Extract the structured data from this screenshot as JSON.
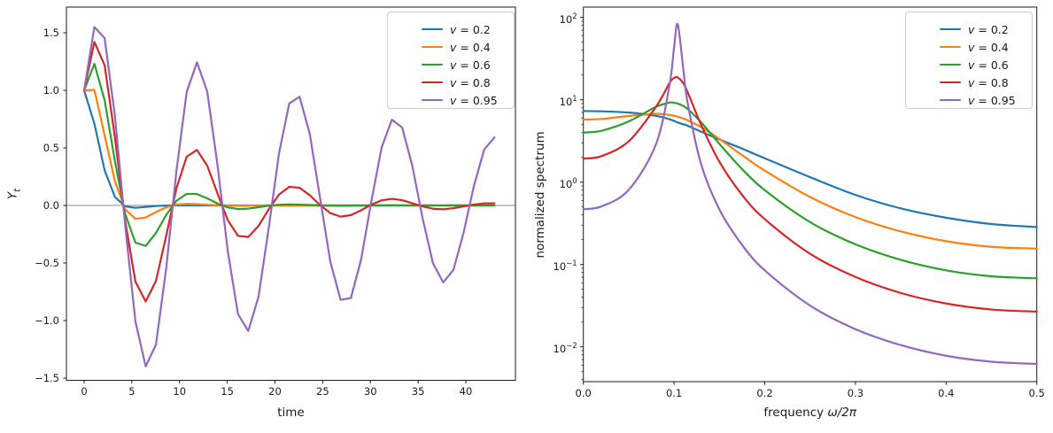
{
  "page": {
    "background": "#ffffff"
  },
  "palette": {
    "blue": "#1f77b4",
    "orange": "#ff7f0e",
    "green": "#2ca02c",
    "red": "#d62728",
    "purple": "#9467bd",
    "zero_line": "#8a8a8a",
    "spine": "#1a1a1a",
    "legend_edge": "#cccccc"
  },
  "chart_data": [
    {
      "type": "line",
      "title": "",
      "xlabel": "time",
      "ylabel_base": "Y",
      "ylabel_sub": "t",
      "xlim": [
        -1.856,
        45.197
      ],
      "ylim": [
        -1.519,
        1.723
      ],
      "yscale": "linear",
      "grid": false,
      "zero_line": true,
      "legend_position": "upper right",
      "xticks": [
        0,
        5,
        10,
        15,
        20,
        25,
        30,
        35,
        40
      ],
      "xtick_labels": [
        "0",
        "5",
        "10",
        "15",
        "20",
        "25",
        "30",
        "35",
        "40"
      ],
      "yticks": [
        1.5,
        1.0,
        0.5,
        0.0,
        -0.5,
        -1.0,
        -1.5
      ],
      "ytick_labels": [
        "1.5",
        "1.0",
        "0.5",
        "0.0",
        "−0.5",
        "−1.0",
        "−1.5"
      ],
      "x": {
        "start": 0,
        "stop": 43,
        "num": 41
      },
      "series": [
        {
          "label_var": "v",
          "label_rest": " = 0.2",
          "color_key": "blue",
          "values": [
            1.0,
            0.7101,
            0.3043,
            0.0741,
            -0.0083,
            -0.0207,
            -0.013,
            -0.0051,
            -0.001,
            0.0003,
            0.0004,
            0.0002,
            0.0001,
            0,
            0,
            0,
            0,
            0,
            0,
            0,
            0,
            0,
            0,
            0,
            0,
            0,
            0,
            0,
            0,
            0,
            0,
            0,
            0,
            0,
            0,
            0,
            0,
            0,
            0,
            0,
            0
          ]
        },
        {
          "label_var": "v",
          "label_rest": " = 0.4",
          "color_key": "orange",
          "values": [
            1.0,
            1.0043,
            0.6085,
            0.2094,
            -0.0331,
            -0.117,
            -0.1043,
            -0.0579,
            -0.0165,
            0.0066,
            0.0133,
            0.0107,
            0.0054,
            0.0012,
            -0.001,
            -0.0015,
            -0.0011,
            -0.0005,
            -0.0001,
            0.0001,
            0.0002,
            0.0002,
            0.0001,
            0,
            0,
            0,
            0,
            0,
            0,
            0,
            0,
            0,
            0,
            0,
            0,
            0,
            0,
            0,
            0,
            0,
            0
          ]
        },
        {
          "label_var": "v",
          "label_rest": " = 0.6",
          "color_key": "green",
          "values": [
            1.0,
            1.23,
            0.9128,
            0.3848,
            -0.0744,
            -0.3224,
            -0.3519,
            -0.2394,
            -0.0833,
            0.0412,
            0.1006,
            0.0991,
            0.0615,
            0.0162,
            -0.017,
            -0.0306,
            -0.0275,
            -0.0154,
            -0.0025,
            0.0062,
            0.0091,
            0.0075,
            0.0037,
            0.0001,
            -0.0021,
            -0.0027,
            -0.002,
            -0.0009,
            0.0001,
            0.0007,
            0.0008,
            0.0005,
            0.0002,
            -0.0001,
            -0.0002,
            -0.0002,
            -0.0001,
            0,
            0.0001,
            0.0001,
            0
          ]
        },
        {
          "label_var": "v",
          "label_rest": " = 0.8",
          "color_key": "red",
          "values": [
            1.0,
            1.4202,
            1.2171,
            0.5924,
            -0.1324,
            -0.6619,
            -0.8341,
            -0.6552,
            -0.2632,
            0.1503,
            0.4241,
            0.482,
            0.3453,
            0.1048,
            -0.1274,
            -0.2648,
            -0.2741,
            -0.1775,
            -0.0328,
            0.0954,
            0.1617,
            0.1534,
            0.0885,
            0.0029,
            -0.0666,
            -0.0969,
            -0.0844,
            -0.0423,
            0.0074,
            0.0444,
            0.0571,
            0.0456,
            0.0191,
            -0.0094,
            -0.0286,
            -0.0331,
            -0.0241,
            -0.0078,
            0.0082,
            0.0179,
            0.0189
          ]
        },
        {
          "label_var": "v",
          "label_rest": " = 0.95",
          "color_key": "purple",
          "values": [
            1.0,
            1.55,
            1.4525,
            0.7789,
            -0.1726,
            -1.0075,
            -1.3976,
            -1.2092,
            -0.5465,
            0.3016,
            0.9867,
            1.2429,
            0.9891,
            0.3523,
            -0.3935,
            -0.9447,
            -1.0904,
            -0.7927,
            -0.1928,
            0.4542,
            0.8872,
            0.9436,
            0.6198,
            0.0642,
            -0.4893,
            -0.8194,
            -0.8051,
            -0.4697,
            0.0369,
            0.5035,
            0.7453,
            0.6769,
            0.3412,
            -0.1142,
            -0.5012,
            -0.6683,
            -0.5597,
            -0.2327,
            0.171,
            0.4862,
            0.5911
          ]
        }
      ]
    },
    {
      "type": "line",
      "title": "",
      "xlabel_text": "frequency ",
      "xlabel_math": "ω/2π",
      "ylabel": "normalized spectrum",
      "xlim": [
        0,
        0.5
      ],
      "ylim": [
        0.00378,
        133.6
      ],
      "yscale": "log",
      "grid": false,
      "zero_line": false,
      "legend_position": "upper right",
      "xticks": [
        0,
        0.1,
        0.2,
        0.3,
        0.4,
        0.5
      ],
      "xtick_labels": [
        "0.0",
        "0.1",
        "0.2",
        "0.3",
        "0.4",
        "0.5"
      ],
      "ytick_exponents": [
        2,
        1,
        0,
        -1,
        -2
      ],
      "ytick_exp_labels": [
        "2",
        "1",
        "0",
        "−1",
        "−2"
      ],
      "ytick_base": "10",
      "f": [
        0,
        0.02,
        0.05,
        0.08,
        0.095,
        0.1,
        0.104,
        0.11,
        0.115,
        0.13,
        0.15,
        0.175,
        0.2,
        0.25,
        0.3,
        0.35,
        0.4,
        0.45,
        0.5
      ],
      "series": [
        {
          "label_var": "v",
          "label_rest": " = 0.2",
          "color_key": "blue",
          "values": [
            7.3,
            7.25,
            7.0,
            6.4,
            5.8,
            5.55,
            5.3,
            5.05,
            4.85,
            4.1,
            3.3,
            2.55,
            1.95,
            1.15,
            0.7,
            0.48,
            0.37,
            0.31,
            0.285
          ]
        },
        {
          "label_var": "v",
          "label_rest": " = 0.4",
          "color_key": "orange",
          "values": [
            5.75,
            5.86,
            6.36,
            6.76,
            6.55,
            6.39,
            6.22,
            5.93,
            5.64,
            4.65,
            3.35,
            2.13,
            1.38,
            0.66,
            0.377,
            0.252,
            0.192,
            0.164,
            0.156
          ]
        },
        {
          "label_var": "v",
          "label_rest": " = 0.6",
          "color_key": "green",
          "values": [
            4.0,
            4.21,
            5.46,
            8.21,
            9.24,
            9.21,
            9.0,
            8.42,
            7.73,
            5.31,
            2.91,
            1.44,
            0.8,
            0.327,
            0.176,
            0.114,
            0.085,
            0.072,
            0.068
          ]
        },
        {
          "label_var": "v",
          "label_rest": " = 0.8",
          "color_key": "red",
          "values": [
            1.93,
            2.07,
            3.13,
            8.2,
            16.0,
            18.4,
            18.7,
            16.0,
            12.4,
            4.92,
            1.77,
            0.7,
            0.356,
            0.135,
            0.0706,
            0.0451,
            0.0336,
            0.0284,
            0.0268
          ]
        },
        {
          "label_var": "v",
          "label_rest": " = 0.95",
          "color_key": "purple",
          "values": [
            0.47,
            0.508,
            0.806,
            2.87,
            15.1,
            43.2,
            82.9,
            24.9,
            9.16,
            1.63,
            0.467,
            0.173,
            0.085,
            0.0317,
            0.0164,
            0.0105,
            0.0078,
            0.0066,
            0.0062
          ]
        }
      ]
    }
  ]
}
